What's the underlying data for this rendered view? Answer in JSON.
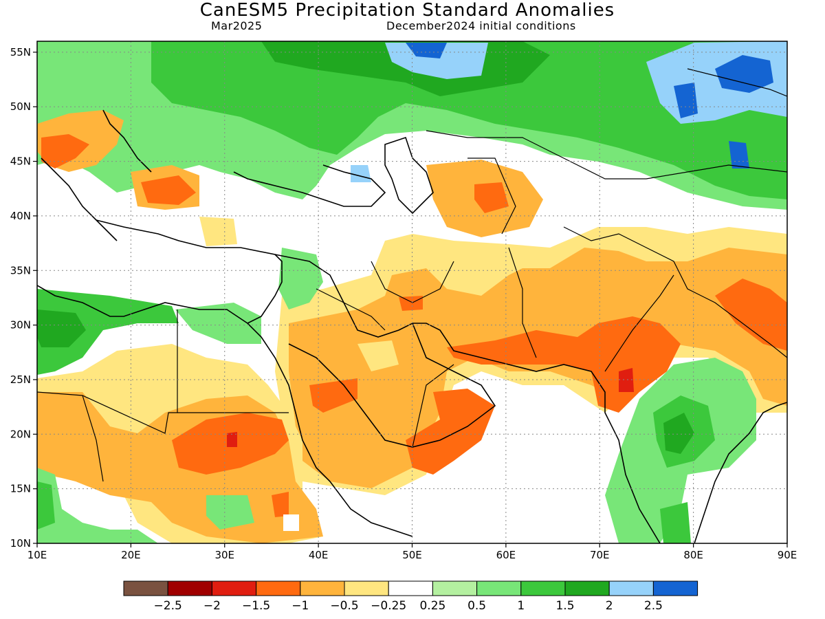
{
  "title": "CanESM5 Precipitation Standard Anomalies",
  "subtitle_left": "Mar2025",
  "subtitle_right": "December2024 initial conditions",
  "map": {
    "lon_range": [
      10,
      90
    ],
    "lat_range": [
      10,
      56
    ],
    "x_ticks": [
      "10E",
      "20E",
      "30E",
      "40E",
      "50E",
      "60E",
      "70E",
      "80E",
      "90E"
    ],
    "y_ticks": [
      "10N",
      "15N",
      "20N",
      "25N",
      "30N",
      "35N",
      "40N",
      "45N",
      "50N",
      "55N"
    ],
    "x_tick_values": [
      10,
      20,
      30,
      40,
      50,
      60,
      70,
      80,
      90
    ],
    "y_tick_values": [
      10,
      15,
      20,
      25,
      30,
      35,
      40,
      45,
      50,
      55
    ],
    "grid": "dotted"
  },
  "colorbar": {
    "labels": [
      "-2.5",
      "-2",
      "-1.5",
      "-1",
      "-0.5",
      "-0.25",
      "0.25",
      "0.5",
      "1",
      "1.5",
      "2",
      "2.5"
    ],
    "colors": [
      "#7a5240",
      "#a00000",
      "#e01e10",
      "#ff6a10",
      "#ffb43c",
      "#ffe680",
      "#ffffff",
      "#b4f0a0",
      "#78e678",
      "#3cc83c",
      "#20a820",
      "#96d2fa",
      "#1464d2"
    ]
  }
}
